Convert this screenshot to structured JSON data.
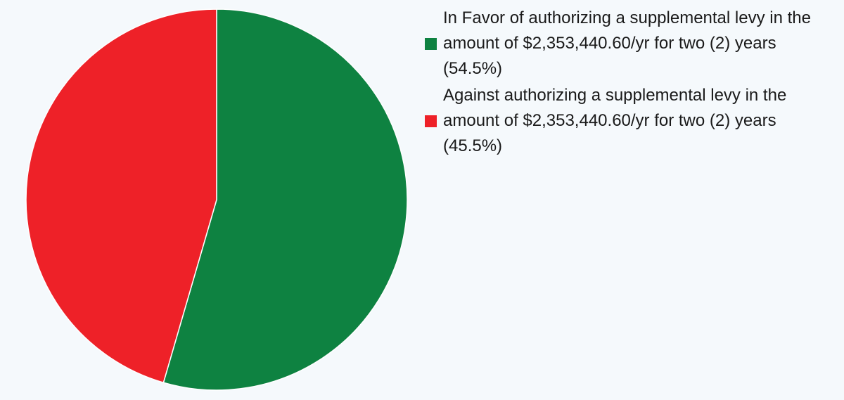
{
  "chart_data": {
    "type": "pie",
    "title": "",
    "slices": [
      {
        "name": "In Favor of authorizing a supplemental levy in the amount of $2,353,440.60/yr for two (2) years",
        "label": "In Favor of authorizing a supplemental levy in the amount of $2,353,440.60/yr for two (2) years (54.5%)",
        "value": 54.5,
        "color": "#0e8241"
      },
      {
        "name": "Against authorizing a supplemental levy in the amount of $2,353,440.60/yr for two (2) years",
        "label": "Against authorizing a supplemental levy in the amount of $2,353,440.60/yr for two (2) years (45.5%)",
        "value": 45.5,
        "color": "#ee2128"
      }
    ],
    "start_angle_deg": 0,
    "direction": "clockwise",
    "legend_position": "right-top"
  }
}
